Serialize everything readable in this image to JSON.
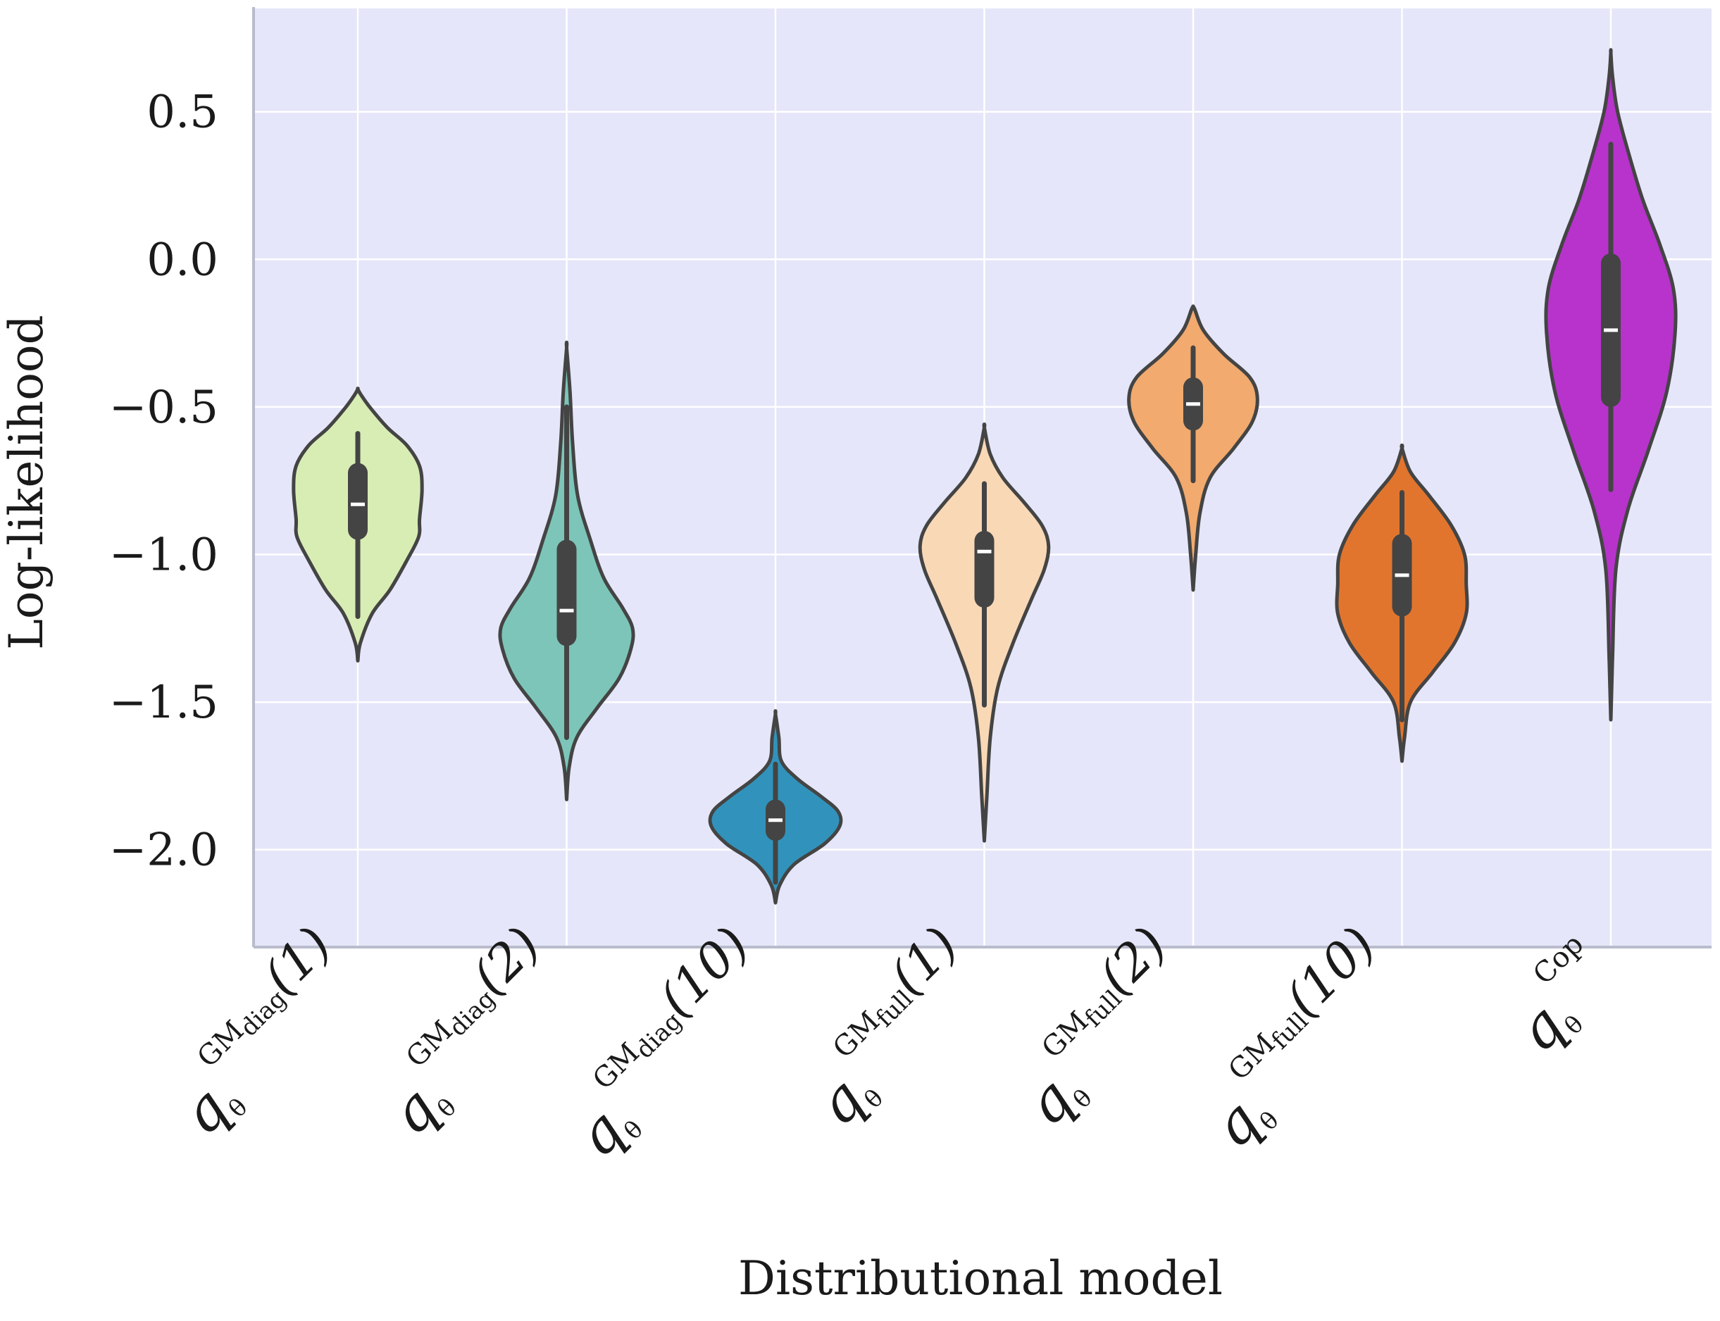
{
  "chart_data": {
    "type": "violin",
    "title": "",
    "xlabel": "Distributional model",
    "ylabel": "Log-likelihood",
    "ylim": [
      -2.33,
      0.85
    ],
    "yticks": [
      0.5,
      0.0,
      -0.5,
      -1.0,
      -1.5,
      -2.0
    ],
    "ytick_labels": [
      "0.5",
      "0.0",
      "−0.5",
      "−1.0",
      "−1.5",
      "−2.0"
    ],
    "grid": true,
    "background": "#e5e6f9",
    "grid_color": "#ffffff",
    "box_color": "#444444",
    "categories": [
      {
        "symbol": "q",
        "subscript": "θ",
        "superscript": "GM",
        "sup_sub": "diag",
        "suffix": "(1)",
        "color": "#d8edb4",
        "median": -0.83,
        "q1": -0.95,
        "q3": -0.69,
        "whisker_low": -1.21,
        "whisker_high": -0.59,
        "profile": [
          [
            -1.36,
            0
          ],
          [
            -1.3,
            0.03
          ],
          [
            -1.2,
            0.17
          ],
          [
            -1.12,
            0.38
          ],
          [
            -1.02,
            0.58
          ],
          [
            -0.94,
            0.72
          ],
          [
            -0.88,
            0.73
          ],
          [
            -0.78,
            0.76
          ],
          [
            -0.7,
            0.73
          ],
          [
            -0.63,
            0.58
          ],
          [
            -0.57,
            0.35
          ],
          [
            -0.5,
            0.14
          ],
          [
            -0.46,
            0.04
          ],
          [
            -0.44,
            0
          ]
        ]
      },
      {
        "symbol": "q",
        "subscript": "θ",
        "superscript": "GM",
        "sup_sub": "diag",
        "suffix": "(2)",
        "color": "#7dc5b8",
        "median": -1.19,
        "q1": -1.31,
        "q3": -0.95,
        "whisker_low": -1.62,
        "whisker_high": -0.5,
        "profile": [
          [
            -1.83,
            0
          ],
          [
            -1.72,
            0.03
          ],
          [
            -1.62,
            0.12
          ],
          [
            -1.52,
            0.36
          ],
          [
            -1.42,
            0.62
          ],
          [
            -1.32,
            0.76
          ],
          [
            -1.25,
            0.78
          ],
          [
            -1.18,
            0.66
          ],
          [
            -1.08,
            0.44
          ],
          [
            -0.95,
            0.28
          ],
          [
            -0.8,
            0.13
          ],
          [
            -0.62,
            0.07
          ],
          [
            -0.45,
            0.04
          ],
          [
            -0.3,
            0
          ]
        ]
      },
      {
        "symbol": "q",
        "subscript": "θ",
        "superscript": "GM",
        "sup_sub": "diag",
        "suffix": "(10)",
        "color": "#3193bb",
        "median": -1.9,
        "q1": -1.97,
        "q3": -1.83,
        "whisker_low": -2.11,
        "whisker_high": -1.71,
        "profile": [
          [
            -2.18,
            0
          ],
          [
            -2.12,
            0.05
          ],
          [
            -2.05,
            0.22
          ],
          [
            -1.98,
            0.58
          ],
          [
            -1.92,
            0.76
          ],
          [
            -1.87,
            0.74
          ],
          [
            -1.82,
            0.54
          ],
          [
            -1.76,
            0.26
          ],
          [
            -1.7,
            0.07
          ],
          [
            -1.62,
            0.04
          ],
          [
            -1.54,
            0
          ]
        ]
      },
      {
        "symbol": "q",
        "subscript": "θ",
        "superscript": "GM",
        "sup_sub": "full",
        "suffix": "(1)",
        "color": "#f9d8b6",
        "median": -0.99,
        "q1": -1.18,
        "q3": -0.92,
        "whisker_low": -1.51,
        "whisker_high": -0.76,
        "profile": [
          [
            -1.97,
            0
          ],
          [
            -1.82,
            0.03
          ],
          [
            -1.62,
            0.07
          ],
          [
            -1.45,
            0.16
          ],
          [
            -1.3,
            0.34
          ],
          [
            -1.15,
            0.56
          ],
          [
            -1.05,
            0.71
          ],
          [
            -0.97,
            0.76
          ],
          [
            -0.9,
            0.68
          ],
          [
            -0.82,
            0.46
          ],
          [
            -0.74,
            0.22
          ],
          [
            -0.66,
            0.07
          ],
          [
            -0.57,
            0
          ]
        ]
      },
      {
        "symbol": "q",
        "subscript": "θ",
        "superscript": "GM",
        "sup_sub": "full",
        "suffix": "(2)",
        "color": "#f2aa6e",
        "median": -0.49,
        "q1": -0.58,
        "q3": -0.4,
        "whisker_low": -0.75,
        "whisker_high": -0.3,
        "profile": [
          [
            -1.12,
            0
          ],
          [
            -1.0,
            0.03
          ],
          [
            -0.86,
            0.08
          ],
          [
            -0.74,
            0.2
          ],
          [
            -0.64,
            0.48
          ],
          [
            -0.55,
            0.7
          ],
          [
            -0.47,
            0.76
          ],
          [
            -0.4,
            0.67
          ],
          [
            -0.32,
            0.36
          ],
          [
            -0.24,
            0.12
          ],
          [
            -0.17,
            0.02
          ],
          [
            -0.16,
            0
          ]
        ]
      },
      {
        "symbol": "q",
        "subscript": "θ",
        "superscript": "GM",
        "sup_sub": "full",
        "suffix": "(10)",
        "color": "#e2752d",
        "median": -1.07,
        "q1": -1.21,
        "q3": -0.93,
        "whisker_low": -1.56,
        "whisker_high": -0.79,
        "profile": [
          [
            -1.7,
            0
          ],
          [
            -1.62,
            0.03
          ],
          [
            -1.5,
            0.1
          ],
          [
            -1.4,
            0.36
          ],
          [
            -1.3,
            0.62
          ],
          [
            -1.2,
            0.76
          ],
          [
            -1.1,
            0.76
          ],
          [
            -1.0,
            0.74
          ],
          [
            -0.9,
            0.58
          ],
          [
            -0.8,
            0.32
          ],
          [
            -0.72,
            0.1
          ],
          [
            -0.64,
            0
          ]
        ]
      },
      {
        "symbol": "q",
        "subscript": "θ",
        "superscript": "Cop",
        "sup_sub": "",
        "suffix": "",
        "color": "#b733cc",
        "median": -0.24,
        "q1": -0.5,
        "q3": 0.02,
        "whisker_low": -0.78,
        "whisker_high": 0.39,
        "profile": [
          [
            -1.56,
            0
          ],
          [
            -1.35,
            0.02
          ],
          [
            -1.05,
            0.06
          ],
          [
            -0.85,
            0.2
          ],
          [
            -0.65,
            0.44
          ],
          [
            -0.45,
            0.66
          ],
          [
            -0.25,
            0.76
          ],
          [
            -0.1,
            0.74
          ],
          [
            0.05,
            0.58
          ],
          [
            0.2,
            0.38
          ],
          [
            0.35,
            0.22
          ],
          [
            0.5,
            0.08
          ],
          [
            0.62,
            0.02
          ],
          [
            0.7,
            0
          ]
        ]
      }
    ]
  }
}
